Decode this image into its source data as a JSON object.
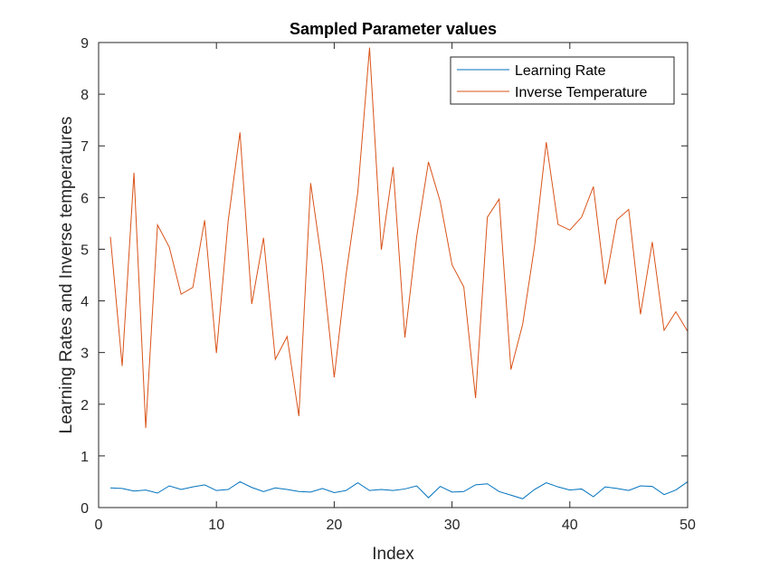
{
  "chart_data": {
    "type": "line",
    "title": "Sampled Parameter values",
    "xlabel": "Index",
    "ylabel": "Learning Rates and Inverse temperatures",
    "xlim": [
      0,
      50
    ],
    "ylim": [
      0,
      9
    ],
    "xticks": [
      "0",
      "10",
      "20",
      "30",
      "40",
      "50"
    ],
    "yticks": [
      "0",
      "1",
      "2",
      "3",
      "4",
      "5",
      "6",
      "7",
      "8",
      "9"
    ],
    "grid": false,
    "legend_position": "top-right",
    "x": [
      1,
      2,
      3,
      4,
      5,
      6,
      7,
      8,
      9,
      10,
      11,
      12,
      13,
      14,
      15,
      16,
      17,
      18,
      19,
      20,
      21,
      22,
      23,
      24,
      25,
      26,
      27,
      28,
      29,
      30,
      31,
      32,
      33,
      34,
      35,
      36,
      37,
      38,
      39,
      40,
      41,
      42,
      43,
      44,
      45,
      46,
      47,
      48,
      49,
      50
    ],
    "series": [
      {
        "name": "Learning Rate",
        "color": "#0072bd",
        "values": [
          0.38,
          0.37,
          0.32,
          0.34,
          0.28,
          0.42,
          0.35,
          0.4,
          0.44,
          0.33,
          0.35,
          0.5,
          0.39,
          0.31,
          0.38,
          0.35,
          0.31,
          0.3,
          0.37,
          0.29,
          0.33,
          0.48,
          0.33,
          0.35,
          0.33,
          0.36,
          0.42,
          0.19,
          0.41,
          0.3,
          0.31,
          0.44,
          0.46,
          0.31,
          0.24,
          0.17,
          0.35,
          0.48,
          0.4,
          0.34,
          0.36,
          0.21,
          0.4,
          0.37,
          0.33,
          0.42,
          0.41,
          0.25,
          0.34,
          0.5
        ]
      },
      {
        "name": "Inverse Temperature",
        "color": "#d95319",
        "values": [
          5.24,
          2.74,
          6.48,
          1.54,
          5.47,
          5.04,
          4.13,
          4.26,
          5.56,
          2.99,
          5.55,
          7.26,
          3.94,
          5.22,
          2.87,
          3.31,
          1.77,
          6.28,
          4.67,
          2.52,
          4.5,
          6.1,
          8.9,
          4.99,
          6.59,
          3.29,
          5.24,
          6.69,
          5.92,
          4.7,
          4.27,
          2.12,
          5.62,
          5.97,
          2.67,
          3.55,
          5.05,
          7.07,
          5.48,
          5.37,
          5.62,
          6.21,
          4.32,
          5.57,
          5.77,
          3.74,
          5.14,
          3.43,
          3.79,
          3.41
        ]
      }
    ]
  }
}
